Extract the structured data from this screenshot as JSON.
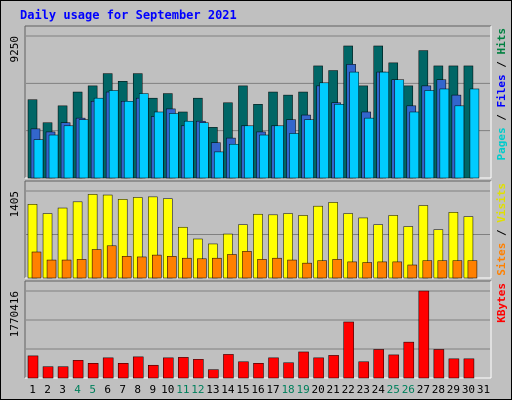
{
  "chart_data": {
    "type": "bar",
    "title": "Daily usage for September 2021",
    "days": [
      "1",
      "2",
      "3",
      "4",
      "5",
      "6",
      "7",
      "8",
      "9",
      "10",
      "11",
      "12",
      "13",
      "14",
      "15",
      "16",
      "17",
      "18",
      "19",
      "20",
      "21",
      "22",
      "23",
      "24",
      "25",
      "26",
      "27",
      "28",
      "29",
      "30",
      "31"
    ],
    "weekend_days": [
      "4",
      "5",
      "11",
      "12",
      "18",
      "19",
      "25",
      "26"
    ],
    "panels": [
      {
        "id": "hits_files_pages",
        "ymax_label": "9250",
        "ymax": 9250,
        "legend": [
          {
            "label": "Pages",
            "color": "#00CCCC"
          },
          {
            "label": "Files",
            "color": "#0000FF"
          },
          {
            "label": "Hits",
            "color": "#008040"
          }
        ],
        "series": [
          {
            "name": "Hits",
            "color": "#006666",
            "values": [
              5100,
              3600,
              4700,
              5600,
              6000,
              6800,
              6300,
              6800,
              5200,
              5500,
              4300,
              5200,
              3300,
              4900,
              6000,
              4800,
              5600,
              5400,
              5600,
              7300,
              7000,
              8600,
              6000,
              8600,
              7500,
              6000,
              8300,
              7300,
              7300,
              7300,
              null
            ]
          },
          {
            "name": "Files",
            "color": "#3366CC",
            "values": [
              3200,
              3000,
              3600,
              3900,
              5000,
              5600,
              5000,
              5200,
              4000,
              4500,
              3400,
              3700,
              2300,
              2600,
              3400,
              3000,
              3400,
              3800,
              4100,
              6000,
              4900,
              7400,
              4300,
              6900,
              6400,
              4700,
              6000,
              6400,
              5400,
              null,
              null
            ]
          },
          {
            "name": "Pages",
            "color": "#00CCFF",
            "values": [
              2500,
              2800,
              3400,
              3800,
              5200,
              5700,
              5000,
              5500,
              4300,
              4200,
              3700,
              3600,
              1700,
              2200,
              3400,
              2800,
              3400,
              2900,
              3800,
              6200,
              4800,
              6900,
              3900,
              6900,
              6400,
              4300,
              5700,
              5800,
              4700,
              5800,
              null
            ]
          }
        ]
      },
      {
        "id": "visits_sites",
        "ymax_label": "1405",
        "ymax": 1405,
        "legend": [
          {
            "label": "Sites",
            "color": "#FF8000"
          },
          {
            "label": "Visits",
            "color": "#FFFF00"
          }
        ],
        "series": [
          {
            "name": "Visits",
            "color": "#FFFF00",
            "values": [
              1190,
              1040,
              1130,
              1230,
              1350,
              1340,
              1270,
              1300,
              1310,
              1280,
              820,
              630,
              550,
              710,
              860,
              1030,
              1020,
              1040,
              1010,
              1160,
              1220,
              1040,
              970,
              860,
              1010,
              830,
              1170,
              780,
              1060,
              990,
              null
            ]
          },
          {
            "name": "Sites",
            "color": "#FF8000",
            "values": [
              420,
              290,
              290,
              300,
              460,
              520,
              350,
              340,
              370,
              350,
              320,
              310,
              320,
              380,
              430,
              300,
              320,
              290,
              240,
              280,
              300,
              260,
              250,
              260,
              260,
              210,
              280,
              280,
              280,
              280,
              null
            ]
          }
        ]
      },
      {
        "id": "kbytes",
        "ymax_label": "1770416",
        "ymax": 1770416,
        "legend": [
          {
            "label": "KBytes",
            "color": "#FF0000"
          }
        ],
        "series": [
          {
            "name": "KBytes",
            "color": "#FF0000",
            "values": [
              450000,
              230000,
              230000,
              360000,
              300000,
              410000,
              300000,
              430000,
              260000,
              410000,
              420000,
              380000,
              170000,
              480000,
              330000,
              300000,
              410000,
              310000,
              530000,
              410000,
              460000,
              1140000,
              330000,
              580000,
              470000,
              730000,
              1770416,
              580000,
              390000,
              390000,
              null
            ]
          }
        ]
      }
    ]
  }
}
